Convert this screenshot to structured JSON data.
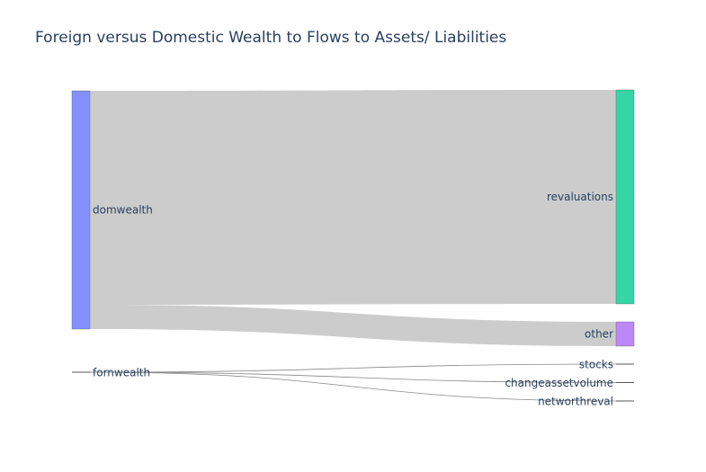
{
  "chart_data": {
    "type": "sankey",
    "title": "Foreign versus Domestic Wealth to Flows to Assets/ Liabilities",
    "nodes": [
      {
        "name": "domwealth",
        "column": 0,
        "color": "#8590ff"
      },
      {
        "name": "fornwealth",
        "column": 0,
        "color": "#8590ff"
      },
      {
        "name": "revaluations",
        "column": 1,
        "color": "#35d5a5"
      },
      {
        "name": "other",
        "column": 1,
        "color": "#bd87f8"
      },
      {
        "name": "stocks",
        "column": 1,
        "color": "#b0b0b0"
      },
      {
        "name": "changeassetvolume",
        "column": 1,
        "color": "#b0b0b0"
      },
      {
        "name": "networthreval",
        "column": 1,
        "color": "#b0b0b0"
      }
    ],
    "links": [
      {
        "source": "domwealth",
        "target": "revaluations",
        "value": 238
      },
      {
        "source": "domwealth",
        "target": "other",
        "value": 27
      },
      {
        "source": "fornwealth",
        "target": "stocks",
        "value": 0.01
      },
      {
        "source": "fornwealth",
        "target": "changeassetvolume",
        "value": 0.01
      },
      {
        "source": "fornwealth",
        "target": "networthreval",
        "value": 0.01
      }
    ],
    "link_color": "#cccccc"
  }
}
